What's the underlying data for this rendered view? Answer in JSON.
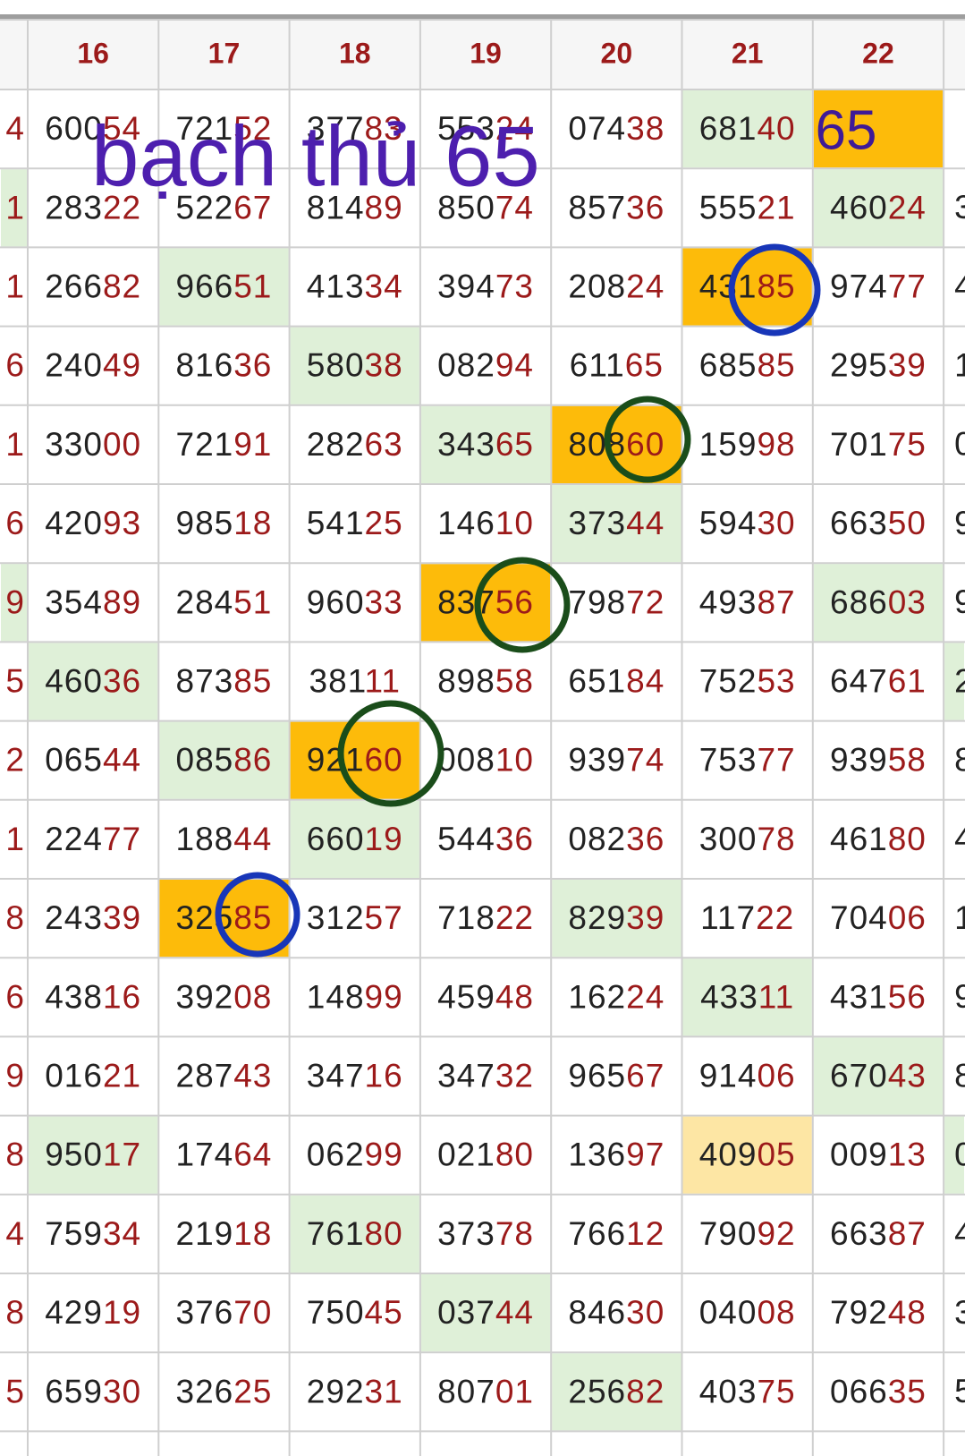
{
  "header": {
    "columns": [
      "16",
      "17",
      "18",
      "19",
      "20",
      "21",
      "22"
    ]
  },
  "rows": [
    {
      "left": "4",
      "cells": [
        "60054",
        "72152",
        "37783",
        "55324",
        "07438",
        "68140",
        ""
      ],
      "right": ""
    },
    {
      "left": "1",
      "cells": [
        "28322",
        "52267",
        "81489",
        "85074",
        "85736",
        "55521",
        "46024"
      ],
      "right": "3"
    },
    {
      "left": "1",
      "cells": [
        "26682",
        "96651",
        "41334",
        "39473",
        "20824",
        "43185",
        "97477"
      ],
      "right": "4"
    },
    {
      "left": "6",
      "cells": [
        "24049",
        "81636",
        "58038",
        "08294",
        "61165",
        "68585",
        "29539"
      ],
      "right": "1"
    },
    {
      "left": "1",
      "cells": [
        "33000",
        "72191",
        "28263",
        "34365",
        "80860",
        "15998",
        "70175"
      ],
      "right": "0"
    },
    {
      "left": "6",
      "cells": [
        "42093",
        "98518",
        "54125",
        "14610",
        "37344",
        "59430",
        "66350"
      ],
      "right": "9"
    },
    {
      "left": "9",
      "cells": [
        "35489",
        "28451",
        "96033",
        "83756",
        "79872",
        "49387",
        "68603"
      ],
      "right": "9"
    },
    {
      "left": "5",
      "cells": [
        "46036",
        "87385",
        "38111",
        "89858",
        "65184",
        "75253",
        "64761"
      ],
      "right": "2"
    },
    {
      "left": "2",
      "cells": [
        "06544",
        "08586",
        "92160",
        "00810",
        "93974",
        "75377",
        "93958"
      ],
      "right": "8"
    },
    {
      "left": "1",
      "cells": [
        "22477",
        "18844",
        "66019",
        "54436",
        "08236",
        "30078",
        "46180"
      ],
      "right": "4"
    },
    {
      "left": "8",
      "cells": [
        "24339",
        "32585",
        "31257",
        "71822",
        "82939",
        "11722",
        "70406"
      ],
      "right": "1"
    },
    {
      "left": "6",
      "cells": [
        "43816",
        "39208",
        "14899",
        "45948",
        "16224",
        "43311",
        "43156"
      ],
      "right": "9"
    },
    {
      "left": "9",
      "cells": [
        "01621",
        "28743",
        "34716",
        "34732",
        "96567",
        "91406",
        "67043"
      ],
      "right": "8"
    },
    {
      "left": "8",
      "cells": [
        "95017",
        "17464",
        "06299",
        "02180",
        "13697",
        "40905",
        "00913"
      ],
      "right": "0"
    },
    {
      "left": "4",
      "cells": [
        "75934",
        "21918",
        "76180",
        "37378",
        "76612",
        "79092",
        "66387"
      ],
      "right": "4"
    },
    {
      "left": "8",
      "cells": [
        "42919",
        "37670",
        "75045",
        "03744",
        "84630",
        "04008",
        "79248"
      ],
      "right": "3"
    },
    {
      "left": "5",
      "cells": [
        "65930",
        "32625",
        "29231",
        "80701",
        "25682",
        "40375",
        "06635"
      ],
      "right": "5"
    }
  ],
  "annotation": {
    "text": "bạch thủ 65",
    "cell_note": "65"
  }
}
